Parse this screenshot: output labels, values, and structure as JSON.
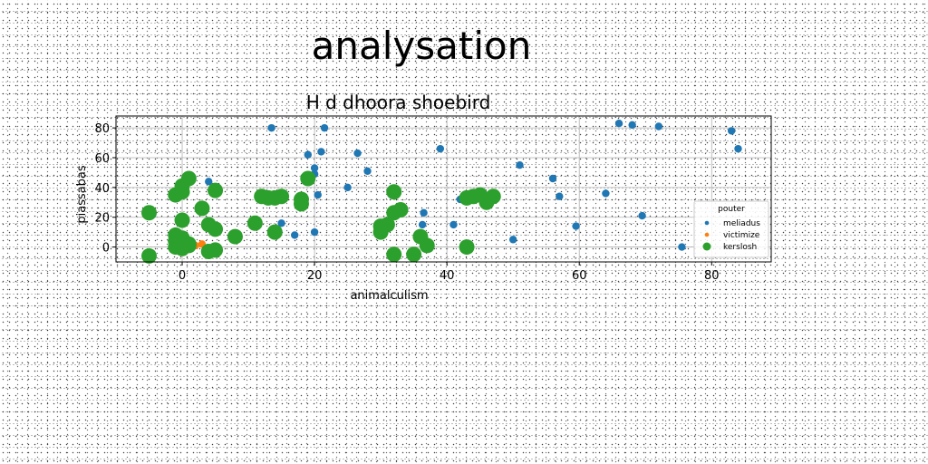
{
  "page": {
    "title": "analysation"
  },
  "chart_data": {
    "type": "scatter",
    "title": "H d dhoora shoebird",
    "xlabel": "animalculism",
    "ylabel": "piassabas",
    "xlim": [
      -10,
      89
    ],
    "ylim": [
      -10,
      88
    ],
    "xticks": [
      0,
      20,
      40,
      60,
      80
    ],
    "yticks": [
      0,
      20,
      40,
      60,
      80
    ],
    "grid": true,
    "legend": {
      "title": "pouter",
      "placement": "lower-right"
    },
    "series": [
      {
        "name": "meliadus",
        "color": "#1f77b4",
        "marker_size": "small",
        "points": [
          [
            13.5,
            80
          ],
          [
            21.5,
            80
          ],
          [
            19,
            62
          ],
          [
            21,
            64
          ],
          [
            26.5,
            63
          ],
          [
            28,
            51
          ],
          [
            20,
            53
          ],
          [
            20,
            49
          ],
          [
            20.5,
            35
          ],
          [
            25,
            40
          ],
          [
            15,
            16
          ],
          [
            17,
            8
          ],
          [
            20,
            10
          ],
          [
            4,
            44
          ],
          [
            36.5,
            23
          ],
          [
            36.3,
            15
          ],
          [
            39,
            66
          ],
          [
            41,
            15
          ],
          [
            42,
            32
          ],
          [
            50,
            5
          ],
          [
            51,
            55
          ],
          [
            56,
            46
          ],
          [
            57,
            34
          ],
          [
            59.5,
            14
          ],
          [
            64,
            36
          ],
          [
            66,
            83
          ],
          [
            68,
            82
          ],
          [
            69.5,
            21
          ],
          [
            72,
            81
          ],
          [
            75.5,
            0
          ],
          [
            83,
            78
          ],
          [
            84,
            66
          ]
        ]
      },
      {
        "name": "victimize",
        "color": "#ff7f0e",
        "marker_size": "small",
        "points": [
          [
            -1,
            0
          ],
          [
            0,
            -1
          ],
          [
            1,
            0
          ],
          [
            2,
            1
          ],
          [
            3,
            2
          ]
        ]
      },
      {
        "name": "kerslosh",
        "color": "#2ca02c",
        "marker_size": "large",
        "points": [
          [
            -5,
            -6
          ],
          [
            -5,
            23
          ],
          [
            -1,
            35
          ],
          [
            -1,
            8
          ],
          [
            -1,
            4
          ],
          [
            -1,
            0
          ],
          [
            0,
            -1
          ],
          [
            0,
            41
          ],
          [
            0,
            18
          ],
          [
            0,
            37
          ],
          [
            0,
            6
          ],
          [
            1,
            1
          ],
          [
            1,
            2
          ],
          [
            1,
            46
          ],
          [
            3,
            26
          ],
          [
            4,
            15
          ],
          [
            4,
            -3
          ],
          [
            5,
            -2
          ],
          [
            5,
            12
          ],
          [
            5,
            38
          ],
          [
            8,
            7
          ],
          [
            11,
            16
          ],
          [
            12,
            34
          ],
          [
            13,
            33
          ],
          [
            14,
            33
          ],
          [
            14,
            10
          ],
          [
            15,
            34
          ],
          [
            18,
            32
          ],
          [
            18,
            29
          ],
          [
            19,
            46
          ],
          [
            30,
            14
          ],
          [
            30,
            10
          ],
          [
            31,
            15
          ],
          [
            32,
            -5
          ],
          [
            32,
            23
          ],
          [
            32,
            37
          ],
          [
            33,
            25
          ],
          [
            35,
            -5
          ],
          [
            36,
            7
          ],
          [
            37,
            1
          ],
          [
            43,
            0
          ],
          [
            43,
            33
          ],
          [
            44,
            34
          ],
          [
            45,
            35
          ],
          [
            46,
            30
          ],
          [
            47,
            34
          ]
        ]
      }
    ]
  }
}
